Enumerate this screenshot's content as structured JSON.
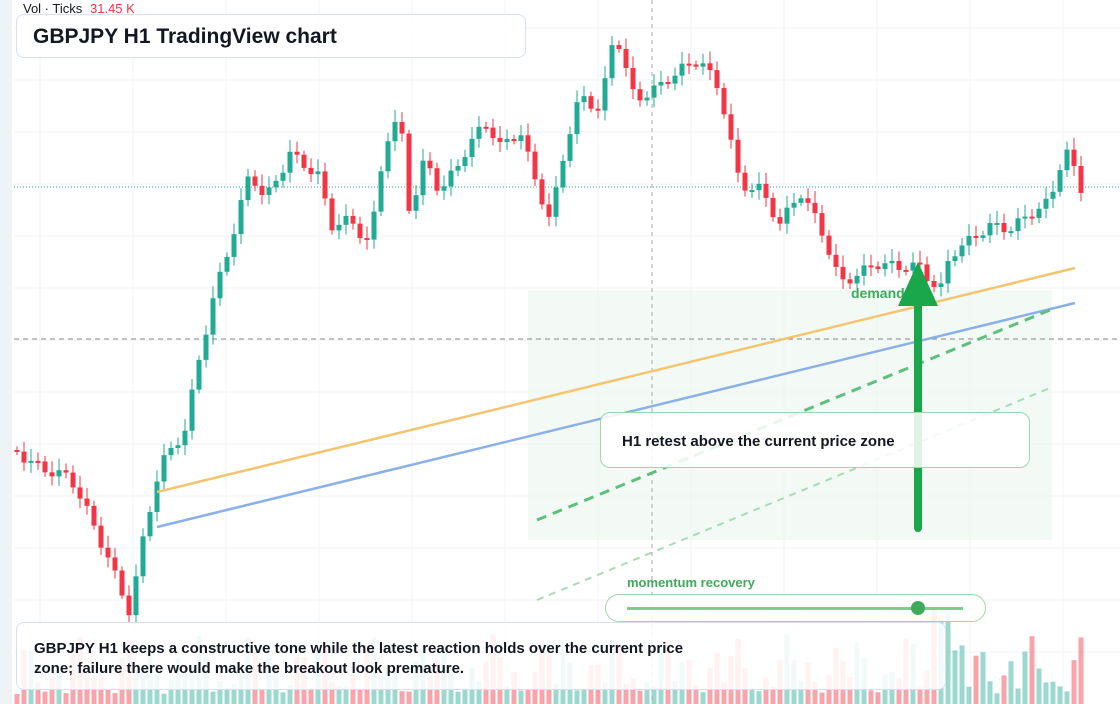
{
  "header": {
    "volume_label": "Vol · Ticks",
    "volume_value": "31.45 K",
    "title": "GBPJPY H1 TradingView chart"
  },
  "annotations": {
    "zone_label": "demand",
    "callout": "H1 retest above the current price zone",
    "indicator": "momentum recovery",
    "summary": "GBPJPY H1 keeps a constructive tone while the latest reaction holds over the current price zone; failure there would make the breakout look premature."
  }
}
